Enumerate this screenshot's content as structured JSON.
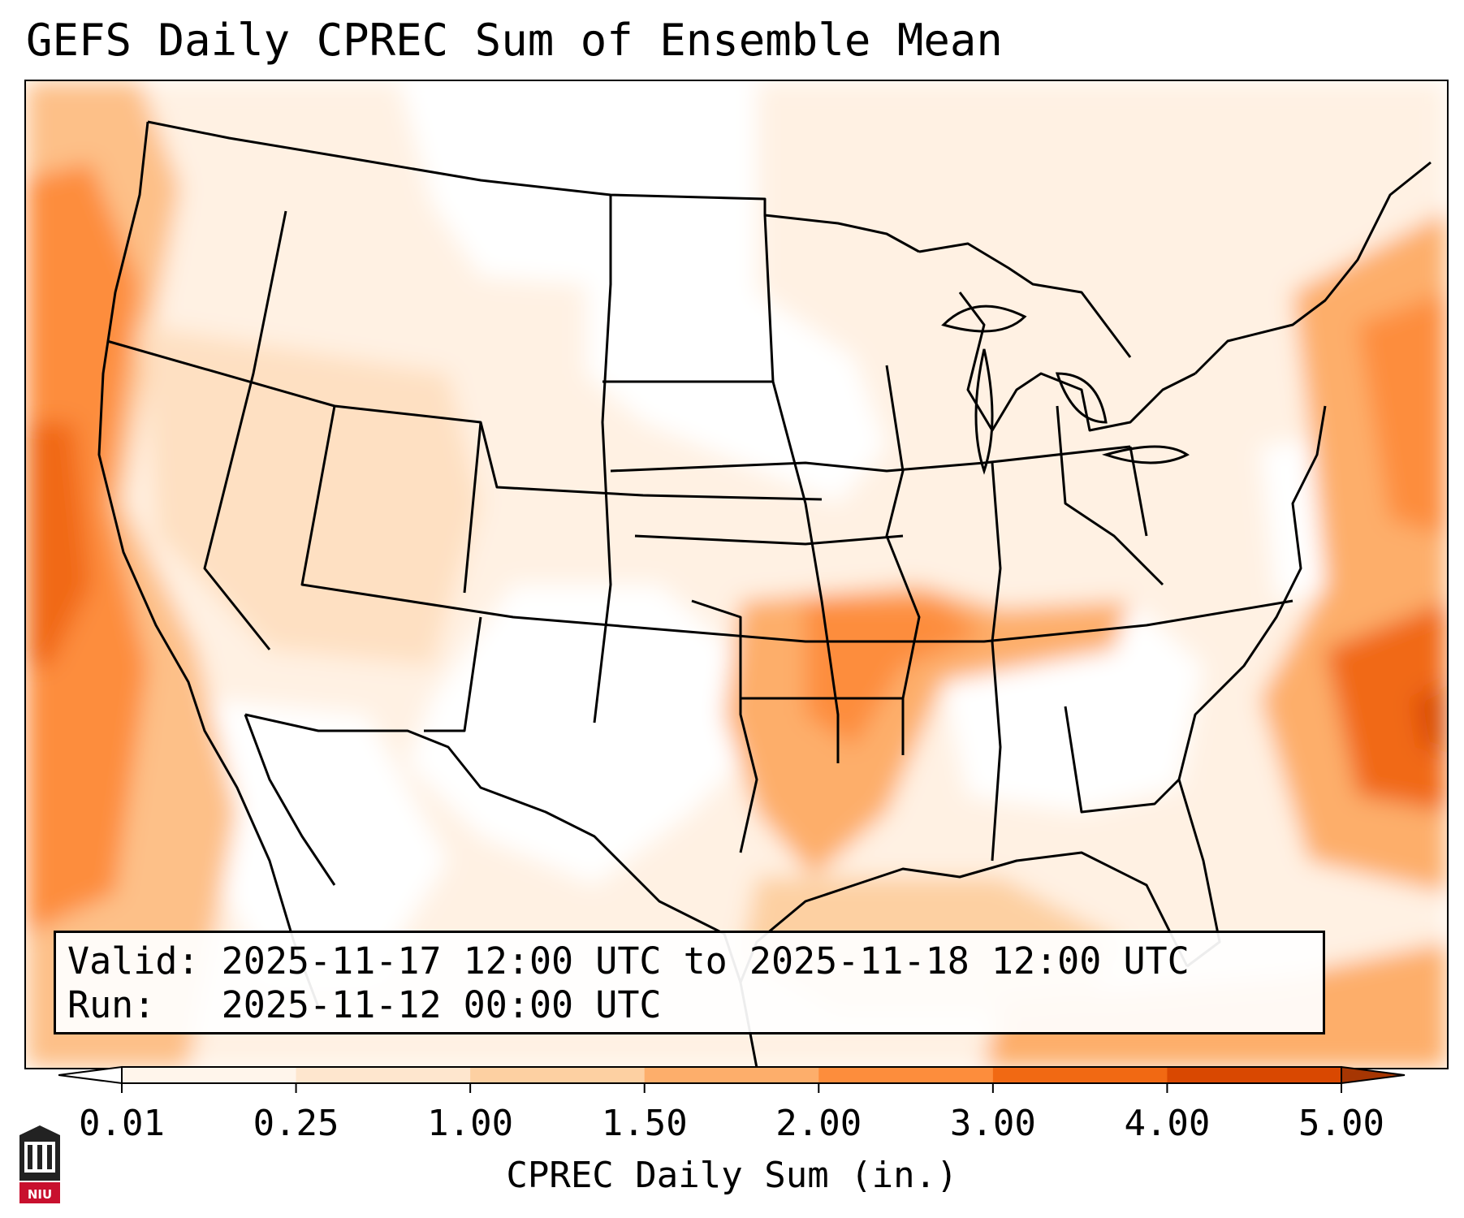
{
  "title": "GEFS Daily CPREC Sum of Ensemble Mean",
  "info": {
    "valid_label": "Valid:",
    "valid_value": "2025-11-17 12:00 UTC to 2025-11-18 12:00 UTC",
    "run_label": "Run:",
    "run_value": "2025-11-12 00:00 UTC"
  },
  "colorbar": {
    "label": "CPREC Daily Sum (in.)",
    "ticks": [
      "0.01",
      "0.25",
      "1.00",
      "1.50",
      "2.00",
      "3.00",
      "4.00",
      "5.00"
    ],
    "colors": [
      "#fff5eb",
      "#fee6ce",
      "#fdd0a2",
      "#fdae6b",
      "#fd8d3c",
      "#f16913",
      "#d94801"
    ],
    "under_color": "#ffffff",
    "over_color": "#a63603"
  },
  "logo": {
    "text": "NIU"
  }
}
